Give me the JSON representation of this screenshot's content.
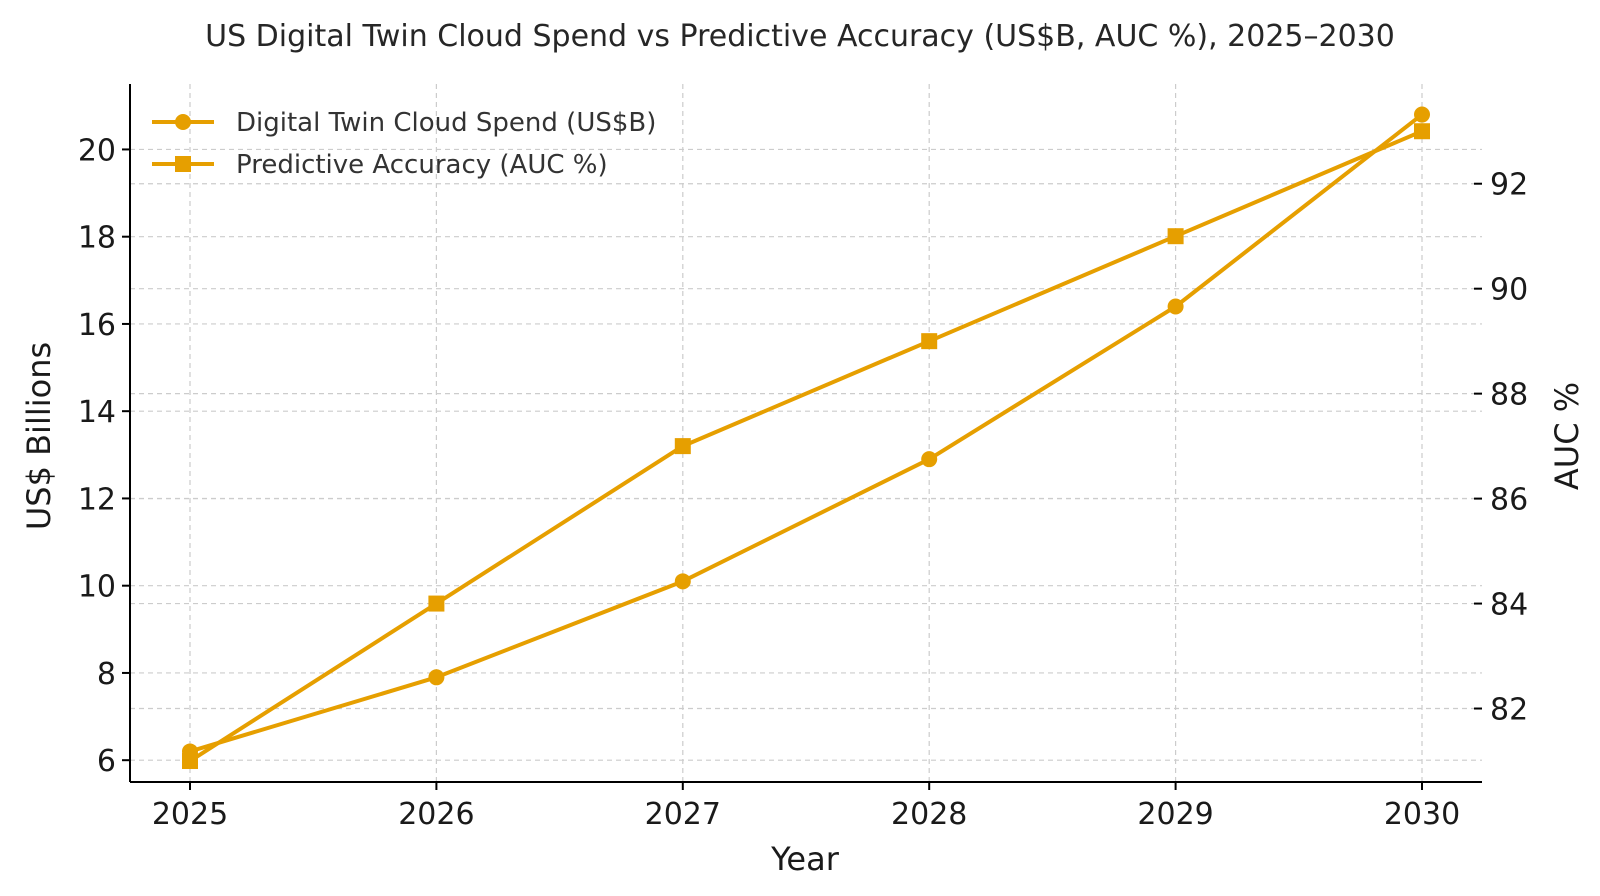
{
  "chart_data": {
    "type": "line",
    "title": "US Digital Twin Cloud Spend vs Predictive Accuracy (US$B, AUC %), 2025–2030",
    "xlabel": "Year",
    "ylabel_left": "US$ Billions",
    "ylabel_right": "AUC %",
    "x": [
      "2025",
      "2026",
      "2027",
      "2028",
      "2029",
      "2030"
    ],
    "ylim_left": [
      5.5,
      21.5
    ],
    "yticks_left": [
      6,
      8,
      10,
      12,
      14,
      16,
      18,
      20
    ],
    "ylim_right": [
      80.6,
      93.9
    ],
    "yticks_right": [
      82,
      84,
      86,
      88,
      90,
      92
    ],
    "grid": true,
    "legend_position": "top-left",
    "series": [
      {
        "name": "Digital Twin Cloud Spend (US$B)",
        "axis": "left",
        "marker": "circle",
        "color": "#E69F00",
        "values": [
          6.2,
          7.9,
          10.1,
          12.9,
          16.4,
          20.8
        ]
      },
      {
        "name": "Predictive Accuracy (AUC %)",
        "axis": "right",
        "marker": "square",
        "color": "#E69F00",
        "values": [
          81.0,
          84.0,
          87.0,
          89.0,
          91.0,
          93.0
        ]
      }
    ]
  }
}
